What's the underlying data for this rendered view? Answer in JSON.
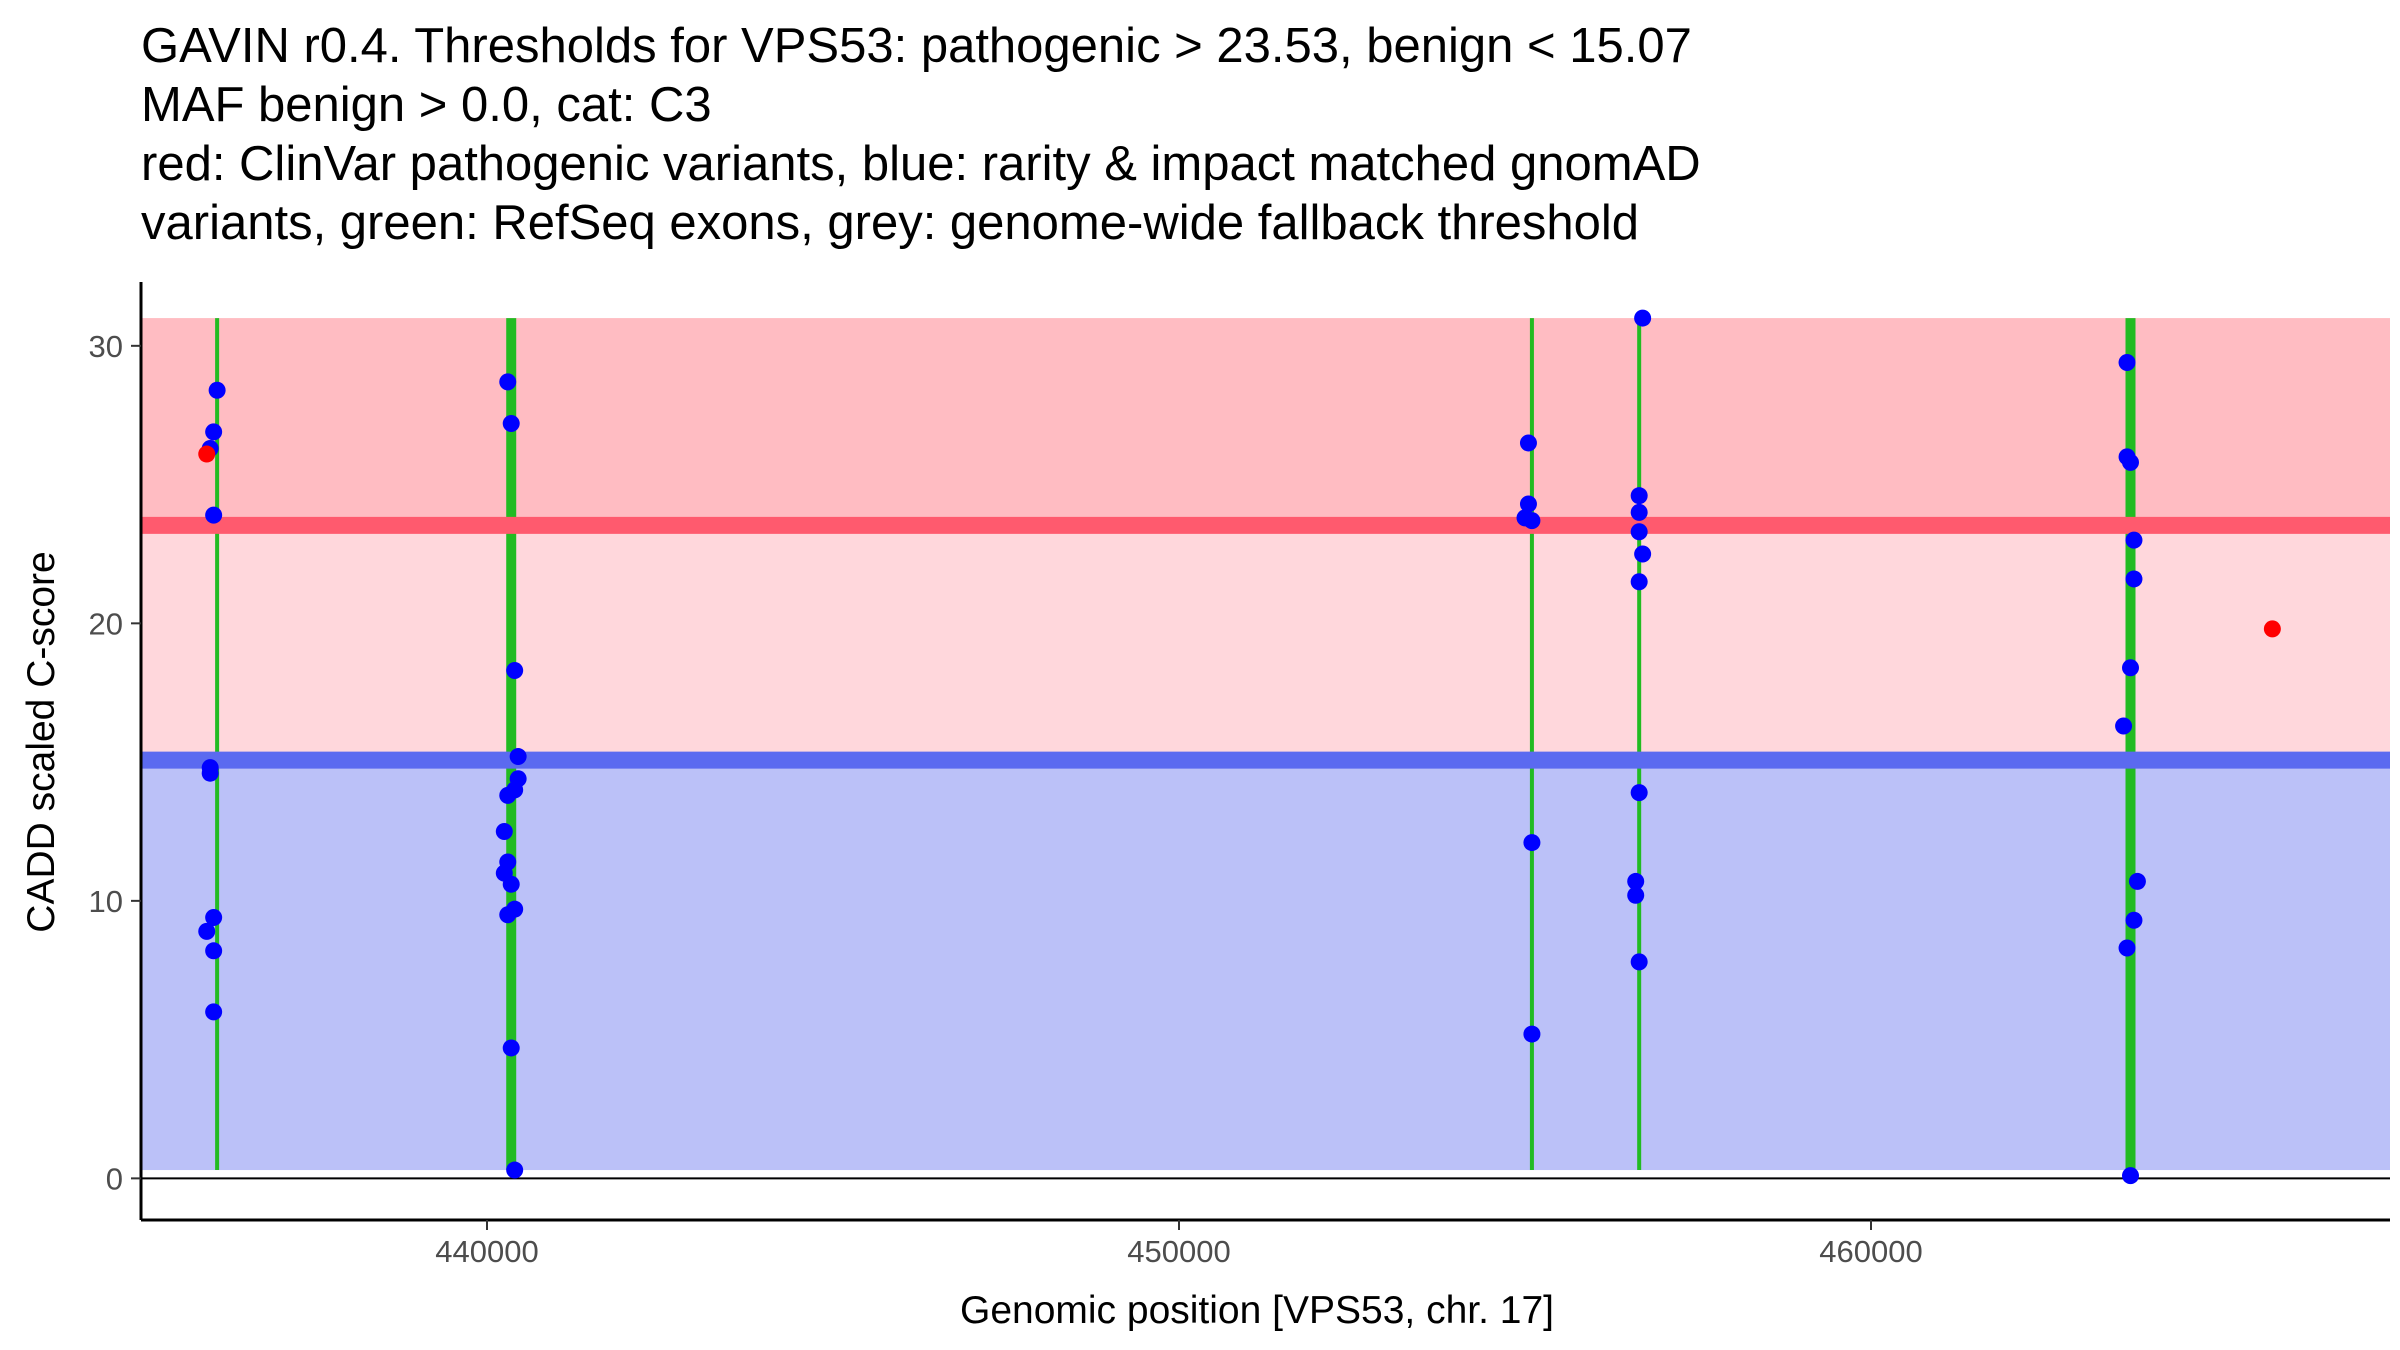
{
  "chart_data": {
    "type": "scatter",
    "title": [
      "GAVIN r0.4. Thresholds for VPS53: pathogenic > 23.53, benign < 15.07",
      "MAF benign > 0.0, cat: C3",
      "red: ClinVar pathogenic variants, blue: rarity & impact matched gnomAD",
      "variants, green: RefSeq exons, grey: genome-wide fallback threshold"
    ],
    "xlabel": "Genomic position [VPS53, chr. 17]",
    "ylabel": "CADD scaled C-score",
    "xlim": [
      435000,
      467500
    ],
    "ylim": [
      -1.5,
      32.3
    ],
    "x_ticks": [
      440000,
      450000,
      460000
    ],
    "x_tick_labels": [
      "440000",
      "450000",
      "460000"
    ],
    "y_ticks": [
      0,
      10,
      20,
      30
    ],
    "y_tick_labels": [
      "0",
      "10",
      "20",
      "30"
    ],
    "thresholds": {
      "pathogenic": 23.53,
      "benign": 15.07
    },
    "bands": [
      {
        "name": "benign-zone",
        "y0": 0.3,
        "y1": 15.07,
        "color": "#bbc1f8"
      },
      {
        "name": "intermediate-zone",
        "y0": 15.07,
        "y1": 23.53,
        "color": "#ffd7dc"
      },
      {
        "name": "pathogenic-zone",
        "y0": 23.53,
        "y1": 31.0,
        "color": "#ffbcc2"
      }
    ],
    "threshold_lines": [
      {
        "name": "benign-threshold-line",
        "y": 15.07,
        "color": "#5b6af0"
      },
      {
        "name": "pathogenic-threshold-line",
        "y": 23.53,
        "color": "#ff5a6e"
      }
    ],
    "exons": [
      {
        "x": 436100,
        "width": 0.5
      },
      {
        "x": 440350,
        "width": 2.5
      },
      {
        "x": 455100,
        "width": 0.5
      },
      {
        "x": 456650,
        "width": 0.5
      },
      {
        "x": 463750,
        "width": 2.5
      }
    ],
    "series": [
      {
        "name": "gnomAD",
        "color": "#0000ff",
        "points": [
          [
            436000,
            26.3
          ],
          [
            436050,
            26.9
          ],
          [
            436100,
            28.4
          ],
          [
            436050,
            23.9
          ],
          [
            436000,
            14.8
          ],
          [
            436000,
            14.6
          ],
          [
            436050,
            9.4
          ],
          [
            435950,
            8.9
          ],
          [
            436050,
            8.2
          ],
          [
            436050,
            6.0
          ],
          [
            440300,
            28.7
          ],
          [
            440350,
            27.2
          ],
          [
            440400,
            18.3
          ],
          [
            440450,
            15.2
          ],
          [
            440450,
            14.4
          ],
          [
            440400,
            14.0
          ],
          [
            440300,
            13.8
          ],
          [
            440250,
            12.5
          ],
          [
            440300,
            11.4
          ],
          [
            440250,
            11.0
          ],
          [
            440350,
            10.6
          ],
          [
            440400,
            9.7
          ],
          [
            440300,
            9.5
          ],
          [
            440350,
            4.7
          ],
          [
            440400,
            0.3
          ],
          [
            455050,
            26.5
          ],
          [
            455050,
            24.3
          ],
          [
            455000,
            23.8
          ],
          [
            455100,
            23.7
          ],
          [
            455100,
            12.1
          ],
          [
            455100,
            5.2
          ],
          [
            456700,
            31.0
          ],
          [
            456650,
            24.6
          ],
          [
            456650,
            24.0
          ],
          [
            456650,
            23.3
          ],
          [
            456700,
            22.5
          ],
          [
            456650,
            21.5
          ],
          [
            456650,
            13.9
          ],
          [
            456600,
            10.7
          ],
          [
            456600,
            10.2
          ],
          [
            456650,
            7.8
          ],
          [
            463700,
            29.4
          ],
          [
            463700,
            26.0
          ],
          [
            463750,
            25.8
          ],
          [
            463800,
            23.0
          ],
          [
            463800,
            21.6
          ],
          [
            463750,
            18.4
          ],
          [
            463650,
            16.3
          ],
          [
            463850,
            10.7
          ],
          [
            463800,
            9.3
          ],
          [
            463700,
            8.3
          ],
          [
            463750,
            0.1
          ]
        ]
      },
      {
        "name": "ClinVar pathogenic",
        "color": "#ff0000",
        "points": [
          [
            435950,
            26.1
          ],
          [
            465800,
            19.8
          ]
        ]
      }
    ],
    "colors": {
      "exon": "#22bb22",
      "axis": "#000000",
      "tick_label": "#4d4d4d"
    }
  }
}
